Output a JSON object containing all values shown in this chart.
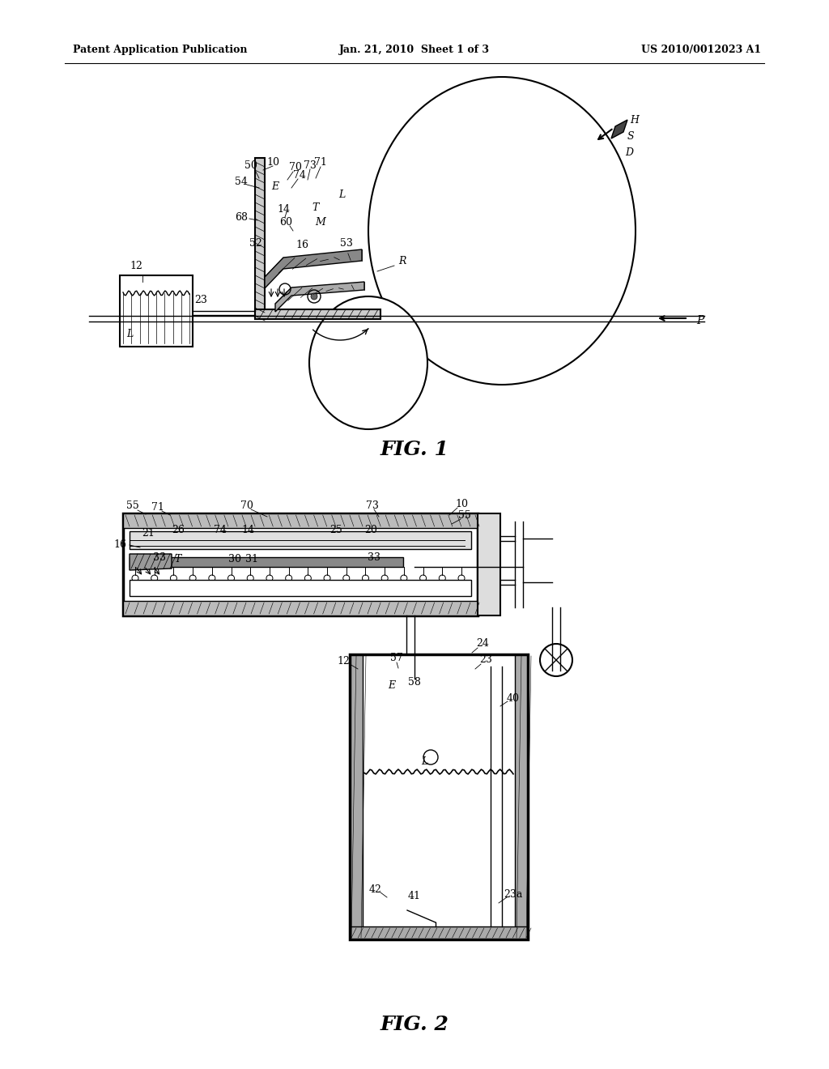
{
  "title_left": "Patent Application Publication",
  "title_center": "Jan. 21, 2010  Sheet 1 of 3",
  "title_right": "US 2010/0012023 A1",
  "fig1_caption": "FIG. 1",
  "fig2_caption": "FIG. 2",
  "bg_color": "#ffffff",
  "line_color": "#000000"
}
